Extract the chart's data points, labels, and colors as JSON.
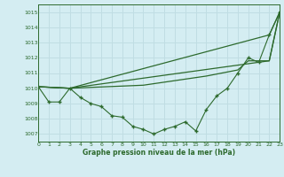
{
  "title": "Graphe pression niveau de la mer (hPa)",
  "bg_color": "#d4edf2",
  "grid_color": "#c0dde3",
  "line_color": "#2d6a2d",
  "xlim": [
    0,
    23
  ],
  "ylim": [
    1006.5,
    1015.5
  ],
  "yticks": [
    1007,
    1008,
    1009,
    1010,
    1011,
    1012,
    1013,
    1014,
    1015
  ],
  "xticks": [
    0,
    1,
    2,
    3,
    4,
    5,
    6,
    7,
    8,
    9,
    10,
    11,
    12,
    13,
    14,
    15,
    16,
    17,
    18,
    19,
    20,
    21,
    22,
    23
  ],
  "series1_x": [
    0,
    1,
    2,
    3,
    4,
    5,
    6,
    7,
    8,
    9,
    10,
    11,
    12,
    13,
    14,
    15,
    16,
    17,
    18,
    19,
    20,
    21,
    22,
    23
  ],
  "series1_y": [
    1010.1,
    1009.1,
    1009.1,
    1010.0,
    1009.4,
    1009.0,
    1008.8,
    1008.2,
    1008.1,
    1007.5,
    1007.3,
    1007.0,
    1007.3,
    1007.5,
    1007.8,
    1007.2,
    1008.6,
    1009.5,
    1010.0,
    1011.0,
    1012.0,
    1011.7,
    1013.5,
    1015.0
  ],
  "series2_x": [
    0,
    3,
    22,
    23
  ],
  "series2_y": [
    1010.1,
    1010.0,
    1013.5,
    1015.0
  ],
  "series3_x": [
    0,
    3,
    22,
    23
  ],
  "series3_y": [
    1010.1,
    1010.0,
    1011.8,
    1015.0
  ],
  "series4_x": [
    0,
    3,
    10,
    16,
    19,
    20,
    22,
    23
  ],
  "series4_y": [
    1010.1,
    1010.0,
    1010.2,
    1010.8,
    1011.2,
    1011.8,
    1011.8,
    1015.0
  ]
}
